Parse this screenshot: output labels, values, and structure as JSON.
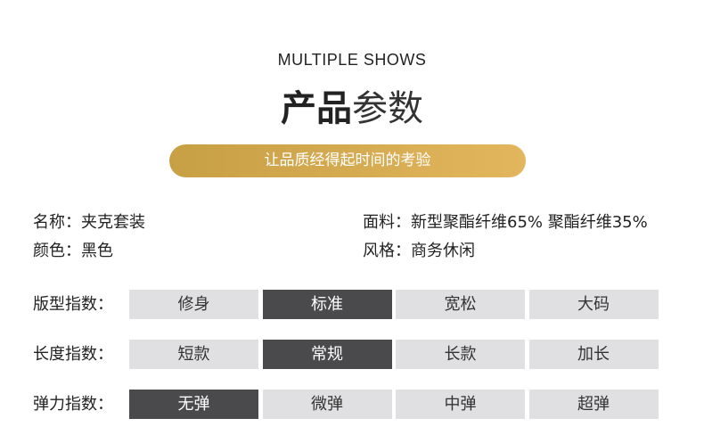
{
  "header": {
    "subtitle": "MULTIPLE SHOWS",
    "title_bold": "产品",
    "title_light": "参数",
    "slogan": "让品质经得起时间的考验"
  },
  "info": [
    {
      "label": "名称：",
      "value": "夹克套装"
    },
    {
      "label": "面料：",
      "value": "新型聚酯纤维65% 聚酯纤维35%"
    },
    {
      "label": "颜色：",
      "value": "黑色"
    },
    {
      "label": "风格：",
      "value": "商务休闲"
    }
  ],
  "indices": [
    {
      "label": "版型指数：",
      "options": [
        "修身",
        "标准",
        "宽松",
        "大码"
      ],
      "selected": 1
    },
    {
      "label": "长度指数：",
      "options": [
        "短款",
        "常规",
        "长款",
        "加长"
      ],
      "selected": 1
    },
    {
      "label": "弹力指数：",
      "options": [
        "无弹",
        "微弹",
        "中弹",
        "超弹"
      ],
      "selected": 0
    }
  ]
}
